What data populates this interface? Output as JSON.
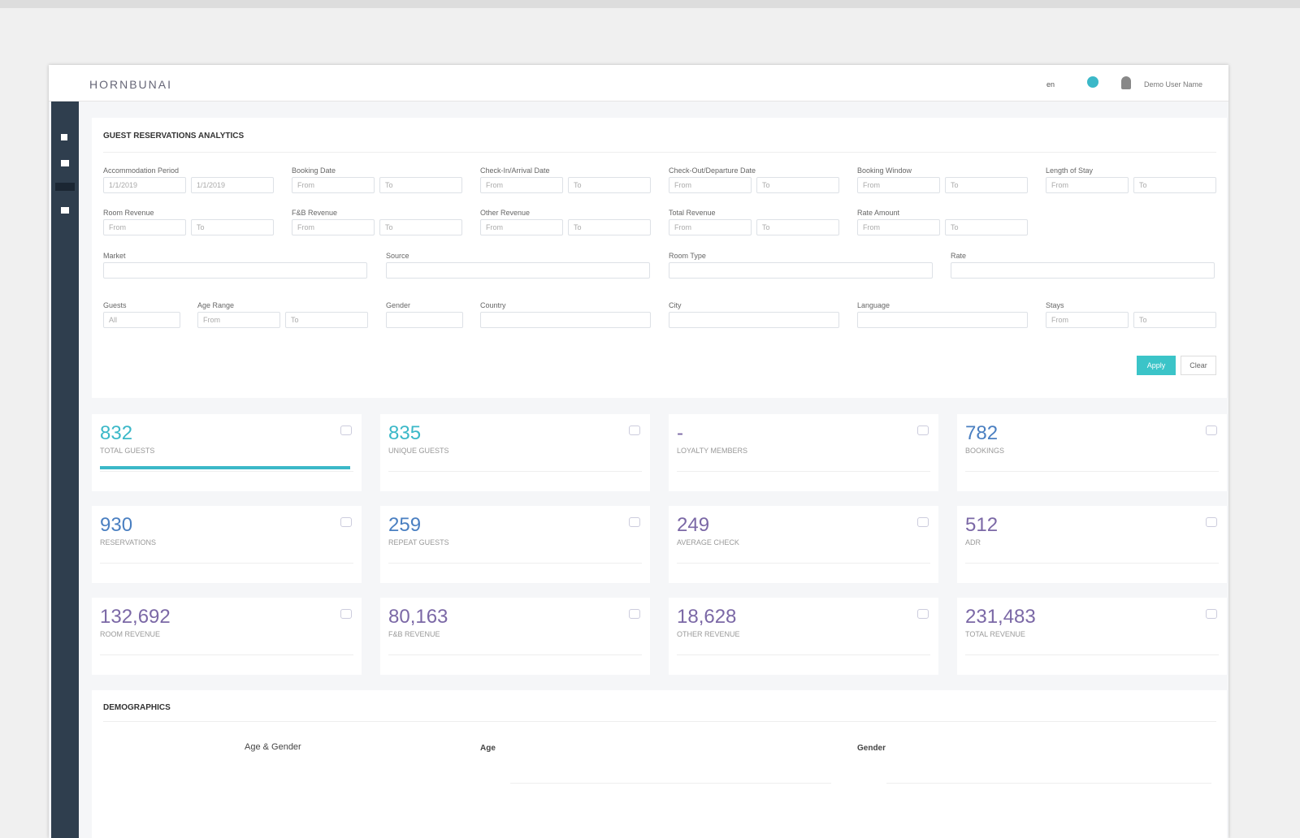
{
  "topbar": {
    "logo": "HORNBUNAI",
    "language": "en",
    "user": "Demo User Name"
  },
  "filters": {
    "title": "GUEST RESERVATIONS ANALYTICS",
    "rows": [
      [
        {
          "label": "Accommodation Period",
          "inputs": [
            "1/1/2019",
            "1/1/2019"
          ]
        },
        {
          "label": "Booking Date",
          "inputs": [
            "From",
            "To"
          ]
        },
        {
          "label": "Check-In/Arrival Date",
          "inputs": [
            "From",
            "To"
          ]
        },
        {
          "label": "Check-Out/Departure Date",
          "inputs": [
            "From",
            "To"
          ]
        },
        {
          "label": "Booking Window",
          "inputs": [
            "From",
            "To"
          ]
        },
        {
          "label": "Length of Stay",
          "inputs": [
            "From",
            "To"
          ]
        }
      ],
      [
        {
          "label": "Room Revenue",
          "inputs": [
            "From",
            "To"
          ]
        },
        {
          "label": "F&B Revenue",
          "inputs": [
            "From",
            "To"
          ]
        },
        {
          "label": "Other Revenue",
          "inputs": [
            "From",
            "To"
          ]
        },
        {
          "label": "Total Revenue",
          "inputs": [
            "From",
            "To"
          ]
        },
        {
          "label": "Rate Amount",
          "inputs": [
            "From",
            "To"
          ]
        }
      ],
      [
        {
          "label": "Market",
          "inputs": [
            ""
          ]
        },
        {
          "label": "Source",
          "inputs": [
            ""
          ]
        },
        {
          "label": "Room Type",
          "inputs": [
            ""
          ]
        },
        {
          "label": "Rate",
          "inputs": [
            ""
          ]
        }
      ],
      [
        {
          "label": "Guests",
          "inputs": [
            "All"
          ]
        },
        {
          "label": "Age Range",
          "inputs": [
            "From",
            "To"
          ]
        },
        {
          "label": "Gender",
          "inputs": [
            ""
          ]
        },
        {
          "label": "Country",
          "inputs": [
            ""
          ]
        },
        {
          "label": "City",
          "inputs": [
            ""
          ]
        },
        {
          "label": "Language",
          "inputs": [
            ""
          ]
        },
        {
          "label": "Stays",
          "inputs": [
            "From",
            "To"
          ]
        }
      ]
    ],
    "apply": "Apply",
    "clear": "Clear"
  },
  "stats": [
    {
      "value": "832",
      "label": "TOTAL GUESTS"
    },
    {
      "value": "835",
      "label": "UNIQUE GUESTS"
    },
    {
      "value": "-",
      "label": "LOYALTY MEMBERS"
    },
    {
      "value": "782",
      "label": "BOOKINGS"
    },
    {
      "value": "930",
      "label": "RESERVATIONS"
    },
    {
      "value": "259",
      "label": "REPEAT GUESTS"
    },
    {
      "value": "249",
      "label": "AVERAGE CHECK"
    },
    {
      "value": "512",
      "label": "ADR"
    },
    {
      "value": "132,692",
      "label": "ROOM REVENUE"
    },
    {
      "value": "80,163",
      "label": "F&B REVENUE"
    },
    {
      "value": "18,628",
      "label": "OTHER REVENUE"
    },
    {
      "value": "231,483",
      "label": "TOTAL REVENUE"
    }
  ],
  "demographics": {
    "title": "DEMOGRAPHICS",
    "charts": [
      "Age & Gender",
      "Age",
      "Gender"
    ]
  }
}
